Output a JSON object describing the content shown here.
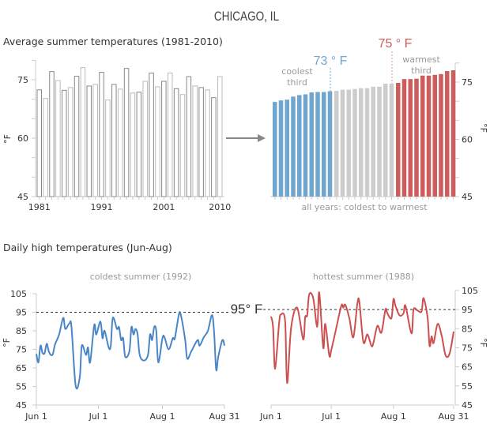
{
  "title": "CHICAGO, IL",
  "colors": {
    "cool": "#6fa6cf",
    "mid": "#cccccc",
    "warm": "#cd5c5c",
    "line_cool": "#4a86c5",
    "line_warm": "#cd4f4f",
    "axis": "#cccccc",
    "text": "#333333",
    "muted": "#999999"
  },
  "chart_data": [
    {
      "type": "bar",
      "title": "Average summer temperatures (1981-2010)",
      "ylabel": "°F",
      "ylim": [
        45,
        80
      ],
      "yticks": [
        "45",
        "60",
        "75"
      ],
      "xtick_labels": [
        "1981",
        "1991",
        "2001",
        "2010"
      ],
      "categories": [
        1981,
        1982,
        1983,
        1984,
        1985,
        1986,
        1987,
        1988,
        1989,
        1990,
        1991,
        1992,
        1993,
        1994,
        1995,
        1996,
        1997,
        1998,
        1999,
        2000,
        2001,
        2002,
        2003,
        2004,
        2005,
        2006,
        2007,
        2008,
        2009,
        2010
      ],
      "values": [
        72.4,
        70.2,
        77.1,
        74.8,
        72.3,
        73.0,
        75.9,
        78.1,
        73.4,
        73.8,
        76.9,
        69.8,
        73.8,
        72.6,
        77.9,
        71.6,
        71.8,
        74.6,
        76.7,
        73.2,
        74.6,
        76.7,
        72.7,
        71.2,
        75.8,
        73.4,
        73.0,
        72.4,
        70.4,
        75.8
      ]
    },
    {
      "type": "bar",
      "xlabel": "all years: coldest to warmest",
      "ylabel": "°F",
      "ylim": [
        45,
        80
      ],
      "yticks": [
        "45",
        "60",
        "75"
      ],
      "groups": [
        {
          "label_line1": "coolest",
          "label_line2": "third",
          "color": "#6fa6cf",
          "values": [
            69.8,
            70.2,
            70.4,
            71.2,
            71.6,
            71.8,
            72.3,
            72.4,
            72.4,
            72.6
          ]
        },
        {
          "color": "#cccccc",
          "values": [
            72.7,
            73.0,
            73.0,
            73.2,
            73.4,
            73.4,
            73.8,
            73.8,
            74.6,
            74.6
          ]
        },
        {
          "label_line1": "warmest",
          "label_line2": "third",
          "color": "#cd5c5c",
          "values": [
            74.8,
            75.8,
            75.8,
            75.9,
            76.7,
            76.7,
            76.9,
            77.1,
            77.9,
            78.1
          ]
        }
      ],
      "thresholds": [
        {
          "label": "73 ° F",
          "color": "#6fa6cf"
        },
        {
          "label": "75 ° F",
          "color": "#cd5c5c"
        }
      ]
    },
    {
      "type": "line",
      "section_title": "Daily high temperatures (Jun-Aug)",
      "title": "coldest summer (1992)",
      "ylabel": "°F",
      "ylim": [
        45,
        105
      ],
      "yticks": [
        "45",
        "55",
        "65",
        "75",
        "85",
        "95",
        "105"
      ],
      "xticks": [
        "Jun 1",
        "Jul 1",
        "Aug 1",
        "Aug 31"
      ],
      "reference_line": {
        "value": 95,
        "label": "95° F"
      },
      "color": "#4a86c5",
      "points": [
        [
          "06-01",
          72.5
        ],
        [
          "06-02",
          68
        ],
        [
          "06-03",
          77
        ],
        [
          "06-04",
          73
        ],
        [
          "06-05",
          73
        ],
        [
          "06-06",
          78
        ],
        [
          "06-07",
          74
        ],
        [
          "06-08",
          72
        ],
        [
          "06-09",
          72.5
        ],
        [
          "06-10",
          77.5
        ],
        [
          "06-12",
          83
        ],
        [
          "06-14",
          92
        ],
        [
          "06-15",
          86
        ],
        [
          "06-17",
          89
        ],
        [
          "06-18",
          87
        ],
        [
          "06-20",
          55.5
        ],
        [
          "06-22",
          60
        ],
        [
          "06-23",
          77
        ],
        [
          "06-25",
          72
        ],
        [
          "06-26",
          76
        ],
        [
          "06-27",
          68
        ],
        [
          "06-29",
          88
        ],
        [
          "06-30",
          83
        ],
        [
          "07-02",
          90
        ],
        [
          "07-03",
          81
        ],
        [
          "07-04",
          85
        ],
        [
          "07-06",
          76
        ],
        [
          "07-07",
          77
        ],
        [
          "07-08",
          92
        ],
        [
          "07-10",
          86
        ],
        [
          "07-11",
          87
        ],
        [
          "07-12",
          80
        ],
        [
          "07-13",
          81
        ],
        [
          "07-14",
          71
        ],
        [
          "07-16",
          74
        ],
        [
          "07-17",
          87
        ],
        [
          "07-18",
          83
        ],
        [
          "07-19",
          86
        ],
        [
          "07-20",
          83
        ],
        [
          "07-21",
          72
        ],
        [
          "07-23",
          69
        ],
        [
          "07-25",
          72
        ],
        [
          "07-26",
          83
        ],
        [
          "07-27",
          80
        ],
        [
          "07-28",
          87
        ],
        [
          "07-29",
          85
        ],
        [
          "07-30",
          68
        ],
        [
          "08-01",
          81
        ],
        [
          "08-02",
          81.5
        ],
        [
          "08-04",
          75
        ],
        [
          "08-06",
          81
        ],
        [
          "08-07",
          81
        ],
        [
          "08-09",
          94
        ],
        [
          "08-10",
          93
        ],
        [
          "08-12",
          80
        ],
        [
          "08-13",
          70
        ],
        [
          "08-15",
          74
        ],
        [
          "08-18",
          80
        ],
        [
          "08-19",
          77
        ],
        [
          "08-21",
          81.5
        ],
        [
          "08-23",
          85
        ],
        [
          "08-25",
          93.5
        ],
        [
          "08-26",
          84
        ],
        [
          "08-27",
          64
        ],
        [
          "08-28",
          71
        ],
        [
          "08-30",
          80
        ],
        [
          "08-31",
          77
        ]
      ]
    },
    {
      "type": "line",
      "title": "hottest summer (1988)",
      "ylabel": "°F",
      "ylim": [
        45,
        105
      ],
      "yticks": [
        "45",
        "55",
        "65",
        "75",
        "85",
        "95",
        "105"
      ],
      "xticks": [
        "Jun 1",
        "Jul 1",
        "Aug 1",
        "Aug 31"
      ],
      "reference_line": {
        "value": 95
      },
      "color": "#cd4f4f",
      "points": [
        [
          "06-01",
          91.4
        ],
        [
          "06-02",
          85.6
        ],
        [
          "06-03",
          64
        ],
        [
          "06-05",
          88
        ],
        [
          "06-06",
          92.5
        ],
        [
          "06-08",
          89
        ],
        [
          "06-09",
          56.5
        ],
        [
          "06-11",
          85.6
        ],
        [
          "06-14",
          96
        ],
        [
          "06-17",
          79.4
        ],
        [
          "06-18",
          91
        ],
        [
          "06-19",
          92
        ],
        [
          "06-20",
          103
        ],
        [
          "06-22",
          101
        ],
        [
          "06-24",
          86
        ],
        [
          "06-25",
          104
        ],
        [
          "06-27",
          75
        ],
        [
          "06-28",
          87.5
        ],
        [
          "06-30",
          71
        ],
        [
          "07-01",
          73.8
        ],
        [
          "07-03",
          83
        ],
        [
          "07-06",
          97
        ],
        [
          "07-07",
          96
        ],
        [
          "07-08",
          97.5
        ],
        [
          "07-10",
          90.5
        ],
        [
          "07-12",
          80.5
        ],
        [
          "07-14",
          98
        ],
        [
          "07-15",
          99
        ],
        [
          "07-17",
          78
        ],
        [
          "07-19",
          82
        ],
        [
          "07-21",
          76
        ],
        [
          "07-22",
          77.5
        ],
        [
          "07-24",
          86.5
        ],
        [
          "07-26",
          83
        ],
        [
          "07-28",
          95
        ],
        [
          "07-29",
          93
        ],
        [
          "07-31",
          90.5
        ],
        [
          "08-01",
          100.5
        ],
        [
          "08-02",
          97
        ],
        [
          "08-04",
          92
        ],
        [
          "08-06",
          93
        ],
        [
          "08-07",
          97
        ],
        [
          "08-10",
          82.5
        ],
        [
          "08-11",
          95
        ],
        [
          "08-13",
          94.5
        ],
        [
          "08-15",
          94
        ],
        [
          "08-16",
          101
        ],
        [
          "08-18",
          91
        ],
        [
          "08-19",
          76
        ],
        [
          "08-20",
          81
        ],
        [
          "08-21",
          77.5
        ],
        [
          "08-23",
          87.5
        ],
        [
          "08-25",
          81.5
        ],
        [
          "08-27",
          71
        ],
        [
          "08-29",
          72
        ],
        [
          "08-31",
          83.5
        ]
      ]
    }
  ]
}
